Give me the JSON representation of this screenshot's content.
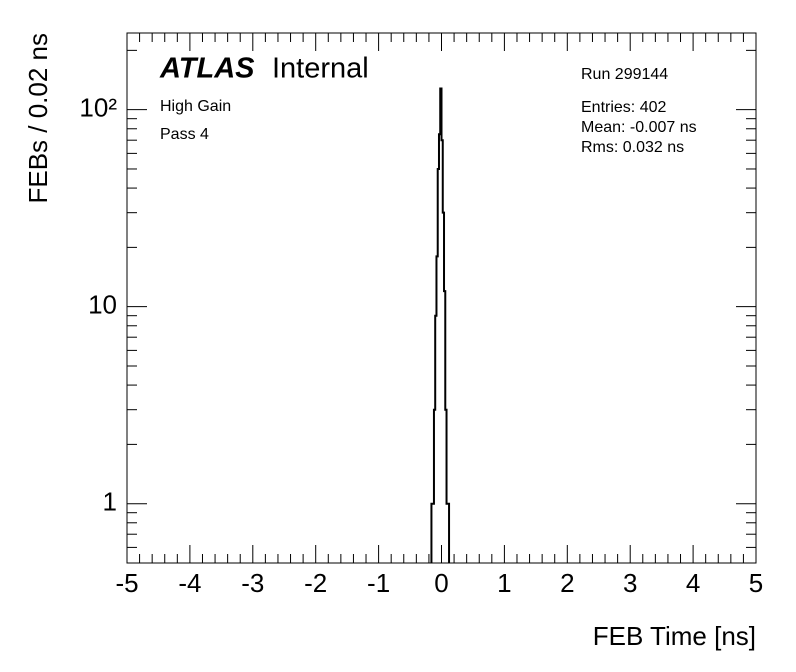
{
  "chart_data": {
    "type": "histogram",
    "brand": "ATLAS",
    "label": "Internal",
    "annotations": [
      "High Gain",
      "Pass 4"
    ],
    "run": "Run 299144",
    "stats": [
      "Entries: 402",
      "Mean: -0.007 ns",
      "Rms: 0.032 ns"
    ],
    "x_label": "FEB Time [ns]",
    "y_label": "FEBs / 0.02 ns",
    "bins": [
      -0.16,
      -0.14,
      -0.12,
      -0.1,
      -0.08,
      -0.06,
      -0.04,
      -0.02,
      0.0,
      0.02,
      0.04,
      0.06,
      0.08,
      0.1,
      0.12
    ],
    "values": [
      1,
      1,
      3,
      9,
      18,
      50,
      75,
      128,
      70,
      30,
      12,
      3,
      1,
      1
    ],
    "color": "#000000",
    "xlim": [
      -5,
      5
    ],
    "xticks": [
      -5,
      -4,
      -3,
      -2,
      -1,
      0,
      1,
      2,
      3,
      4,
      5
    ],
    "ylim": [
      0.5,
      245
    ],
    "yticks": [
      1,
      10,
      {
        "value": 100,
        "label": "10²"
      }
    ],
    "log_y": true
  }
}
